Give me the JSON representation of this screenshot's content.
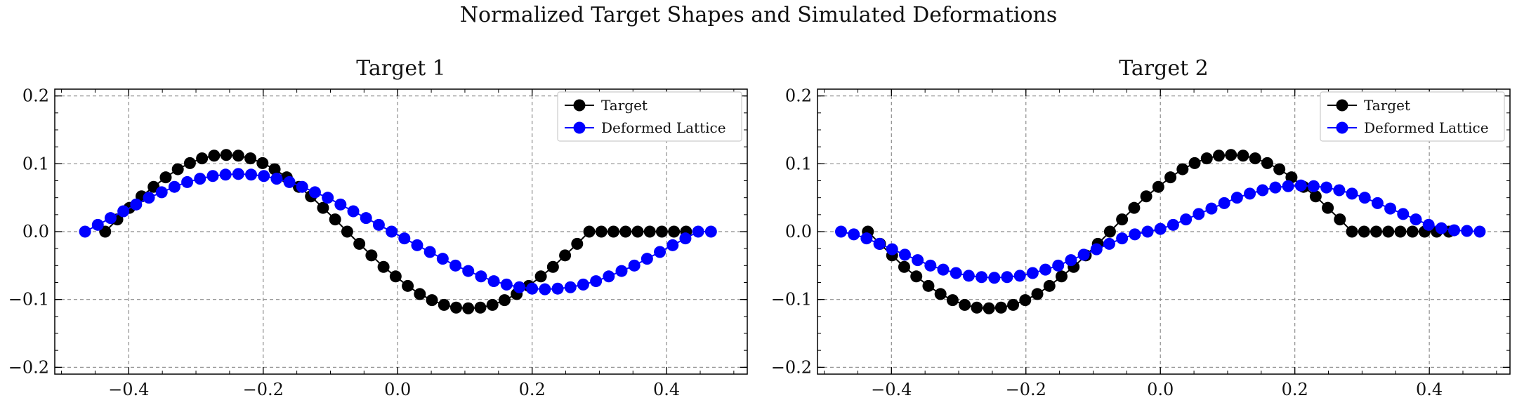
{
  "title": "Normalized Target Shapes and Simulated Deformations",
  "colors": {
    "target": "#000000",
    "deformed": "#0000ff",
    "grid": "#8c8c8c"
  },
  "chart_data": [
    {
      "type": "line",
      "title": "Target 1",
      "xlim": [
        -0.51,
        0.52
      ],
      "ylim": [
        -0.21,
        0.21
      ],
      "xticks": [
        -0.4,
        -0.2,
        0.0,
        0.2,
        0.4
      ],
      "xtick_labels": [
        "−0.4",
        "−0.2",
        "0.0",
        "0.2",
        "0.4"
      ],
      "yticks": [
        -0.2,
        -0.1,
        0.0,
        0.1,
        0.2
      ],
      "ytick_labels": [
        "−0.2",
        "−0.1",
        "0.0",
        "0.1",
        "0.2"
      ],
      "grid": true,
      "legend_position": "upper right",
      "series": [
        {
          "name": "Target",
          "color": "#000000",
          "x": [
            -0.435,
            -0.417,
            -0.399,
            -0.381,
            -0.363,
            -0.345,
            -0.327,
            -0.309,
            -0.291,
            -0.273,
            -0.255,
            -0.237,
            -0.219,
            -0.201,
            -0.183,
            -0.165,
            -0.147,
            -0.129,
            -0.111,
            -0.093,
            -0.075,
            -0.057,
            -0.039,
            -0.021,
            -0.003,
            0.015,
            0.033,
            0.051,
            0.069,
            0.087,
            0.105,
            0.123,
            0.141,
            0.159,
            0.177,
            0.195,
            0.213,
            0.231,
            0.249,
            0.267,
            0.285,
            0.303,
            0.321,
            0.339,
            0.357,
            0.375,
            0.393,
            0.411,
            0.429
          ],
          "y": [
            0.0,
            0.018,
            0.035,
            0.052,
            0.066,
            0.08,
            0.092,
            0.101,
            0.108,
            0.112,
            0.113,
            0.112,
            0.108,
            0.101,
            0.092,
            0.08,
            0.066,
            0.052,
            0.035,
            0.018,
            0.0,
            -0.018,
            -0.035,
            -0.052,
            -0.066,
            -0.08,
            -0.092,
            -0.101,
            -0.108,
            -0.112,
            -0.113,
            -0.112,
            -0.108,
            -0.101,
            -0.092,
            -0.08,
            -0.066,
            -0.052,
            -0.035,
            -0.018,
            0.0,
            0.0,
            0.0,
            0.0,
            0.0,
            0.0,
            0.0,
            0.0,
            0.0
          ]
        },
        {
          "name": "Deformed Lattice",
          "color": "#0000ff",
          "x": [
            -0.465,
            -0.446,
            -0.427,
            -0.408,
            -0.389,
            -0.37,
            -0.351,
            -0.332,
            -0.313,
            -0.294,
            -0.275,
            -0.256,
            -0.237,
            -0.218,
            -0.199,
            -0.18,
            -0.161,
            -0.142,
            -0.123,
            -0.104,
            -0.085,
            -0.066,
            -0.047,
            -0.028,
            -0.009,
            0.01,
            0.029,
            0.048,
            0.067,
            0.086,
            0.105,
            0.124,
            0.143,
            0.162,
            0.181,
            0.2,
            0.219,
            0.238,
            0.257,
            0.276,
            0.295,
            0.314,
            0.333,
            0.352,
            0.371,
            0.39,
            0.409,
            0.428,
            0.447,
            0.466
          ],
          "y": [
            0.0,
            0.01,
            0.02,
            0.03,
            0.04,
            0.05,
            0.058,
            0.066,
            0.073,
            0.078,
            0.082,
            0.084,
            0.085,
            0.084,
            0.082,
            0.078,
            0.073,
            0.066,
            0.058,
            0.05,
            0.04,
            0.03,
            0.02,
            0.01,
            0.0,
            -0.01,
            -0.02,
            -0.03,
            -0.04,
            -0.05,
            -0.058,
            -0.066,
            -0.073,
            -0.078,
            -0.082,
            -0.084,
            -0.085,
            -0.084,
            -0.082,
            -0.078,
            -0.073,
            -0.066,
            -0.058,
            -0.05,
            -0.04,
            -0.03,
            -0.02,
            -0.01,
            0.0,
            0.0
          ]
        }
      ]
    },
    {
      "type": "line",
      "title": "Target 2",
      "xlim": [
        -0.51,
        0.52
      ],
      "ylim": [
        -0.21,
        0.21
      ],
      "xticks": [
        -0.4,
        -0.2,
        0.0,
        0.2,
        0.4
      ],
      "xtick_labels": [
        "−0.4",
        "−0.2",
        "0.0",
        "0.2",
        "0.4"
      ],
      "yticks": [
        -0.2,
        -0.1,
        0.0,
        0.1,
        0.2
      ],
      "ytick_labels": [
        "−0.2",
        "−0.1",
        "0.0",
        "0.1",
        "0.2"
      ],
      "grid": true,
      "legend_position": "upper right",
      "series": [
        {
          "name": "Target",
          "color": "#000000",
          "x": [
            -0.435,
            -0.417,
            -0.399,
            -0.381,
            -0.363,
            -0.345,
            -0.327,
            -0.309,
            -0.291,
            -0.273,
            -0.255,
            -0.237,
            -0.219,
            -0.201,
            -0.183,
            -0.165,
            -0.147,
            -0.129,
            -0.111,
            -0.093,
            -0.075,
            -0.057,
            -0.039,
            -0.021,
            -0.003,
            0.015,
            0.033,
            0.051,
            0.069,
            0.087,
            0.105,
            0.123,
            0.141,
            0.159,
            0.177,
            0.195,
            0.213,
            0.231,
            0.249,
            0.267,
            0.285,
            0.303,
            0.321,
            0.339,
            0.357,
            0.375,
            0.393,
            0.411,
            0.429
          ],
          "y": [
            0.0,
            -0.018,
            -0.035,
            -0.052,
            -0.066,
            -0.08,
            -0.092,
            -0.101,
            -0.108,
            -0.112,
            -0.113,
            -0.112,
            -0.108,
            -0.101,
            -0.092,
            -0.08,
            -0.066,
            -0.052,
            -0.035,
            -0.018,
            0.0,
            0.018,
            0.035,
            0.052,
            0.066,
            0.08,
            0.092,
            0.101,
            0.108,
            0.112,
            0.113,
            0.112,
            0.108,
            0.101,
            0.092,
            0.08,
            0.066,
            0.052,
            0.035,
            0.018,
            0.0,
            0.0,
            0.0,
            0.0,
            0.0,
            0.0,
            0.0,
            0.0,
            0.0
          ]
        },
        {
          "name": "Deformed Lattice",
          "color": "#0000ff",
          "x": [
            -0.475,
            -0.456,
            -0.437,
            -0.418,
            -0.399,
            -0.38,
            -0.361,
            -0.342,
            -0.323,
            -0.304,
            -0.285,
            -0.266,
            -0.247,
            -0.228,
            -0.209,
            -0.19,
            -0.171,
            -0.152,
            -0.133,
            -0.114,
            -0.095,
            -0.076,
            -0.057,
            -0.038,
            -0.019,
            0.0,
            0.019,
            0.038,
            0.057,
            0.076,
            0.095,
            0.114,
            0.133,
            0.152,
            0.171,
            0.19,
            0.209,
            0.228,
            0.247,
            0.266,
            0.285,
            0.304,
            0.323,
            0.342,
            0.361,
            0.38,
            0.399,
            0.418,
            0.437,
            0.456,
            0.475
          ],
          "y": [
            0.0,
            -0.004,
            -0.01,
            -0.018,
            -0.026,
            -0.034,
            -0.042,
            -0.05,
            -0.056,
            -0.061,
            -0.065,
            -0.067,
            -0.068,
            -0.067,
            -0.065,
            -0.061,
            -0.056,
            -0.05,
            -0.042,
            -0.034,
            -0.026,
            -0.018,
            -0.01,
            -0.004,
            0.0,
            0.004,
            0.01,
            0.018,
            0.026,
            0.034,
            0.042,
            0.05,
            0.056,
            0.061,
            0.065,
            0.067,
            0.068,
            0.067,
            0.065,
            0.061,
            0.056,
            0.05,
            0.042,
            0.034,
            0.026,
            0.018,
            0.01,
            0.005,
            0.002,
            0.001,
            0.0
          ]
        }
      ]
    }
  ]
}
